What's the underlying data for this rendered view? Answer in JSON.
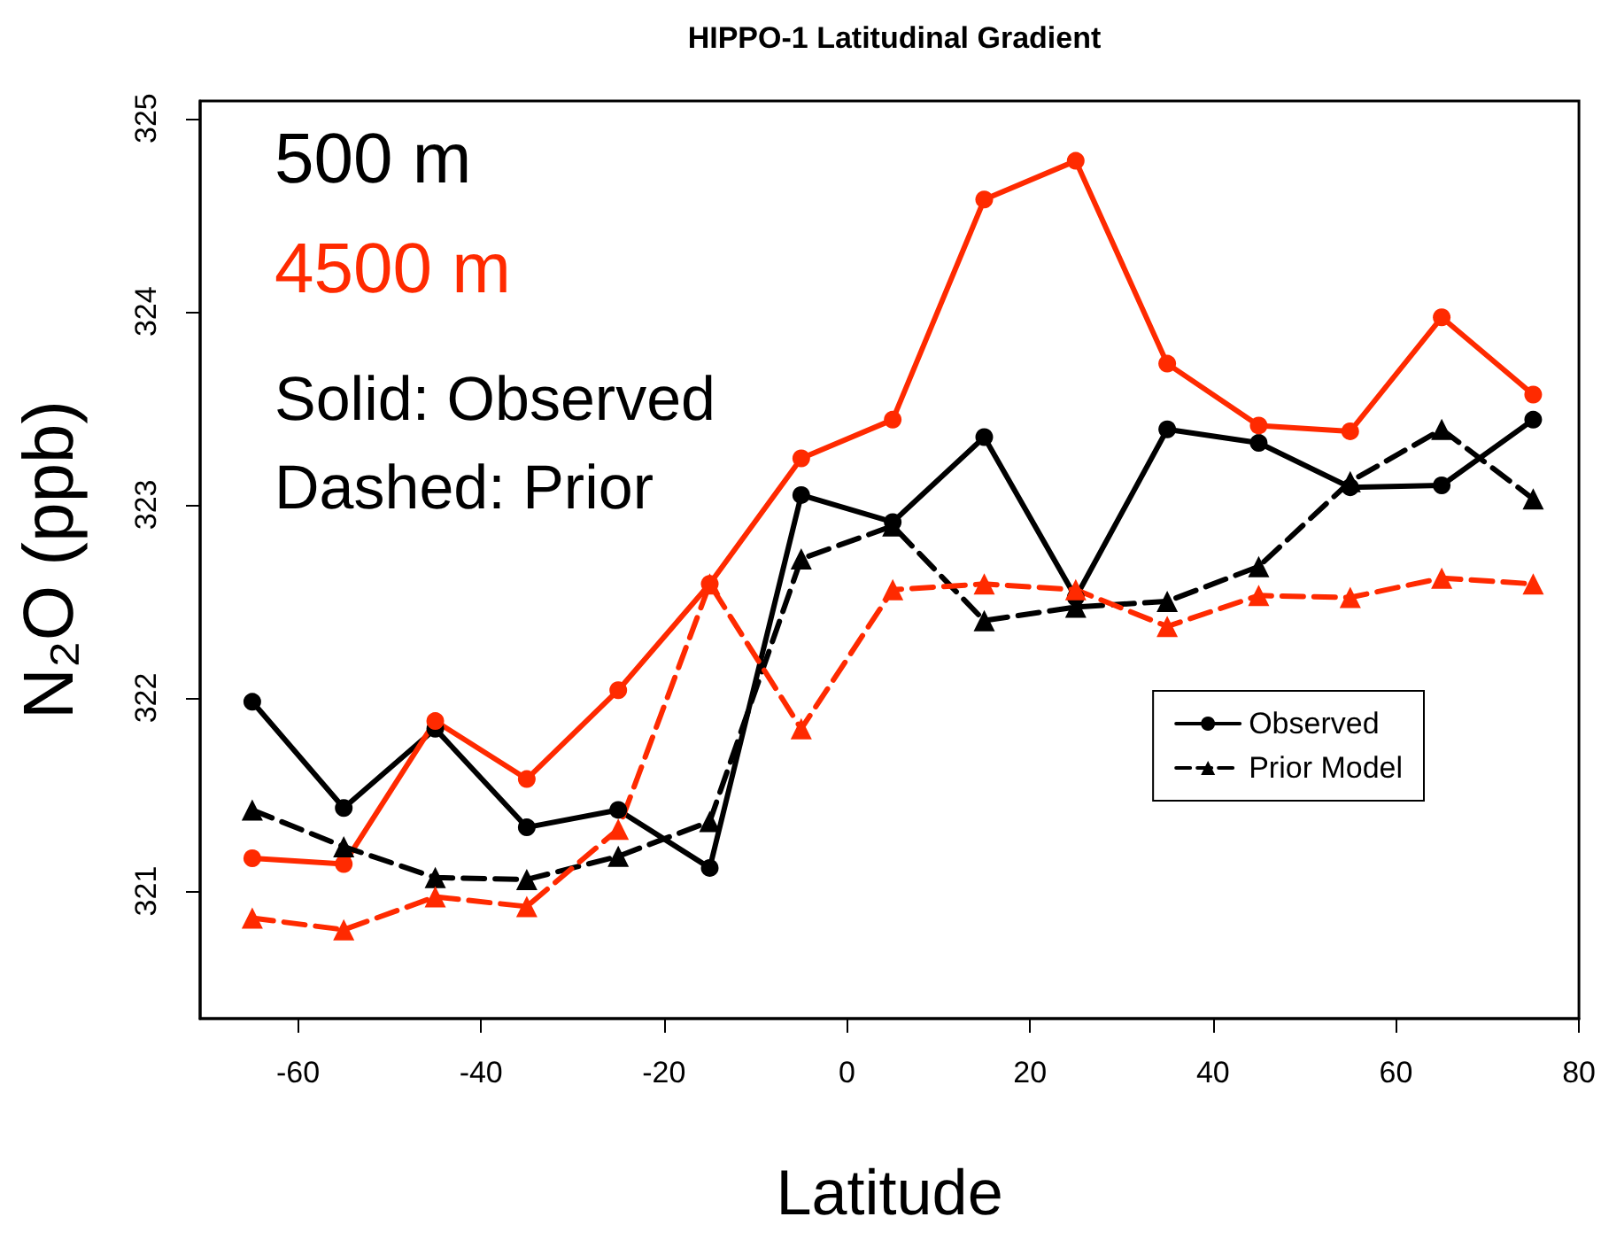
{
  "chart_data": {
    "type": "line",
    "title": "HIPPO-1 Latitudinal Gradient",
    "xlabel": "Latitude",
    "ylabel": "N₂O (ppb)",
    "annotations": [
      "500 m",
      "4500 m",
      "Solid: Observed",
      "Dashed: Prior"
    ],
    "x": [
      -65,
      -55,
      -45,
      -35,
      -25,
      -15,
      -5,
      5,
      15,
      25,
      35,
      45,
      55,
      65,
      75
    ],
    "series": [
      {
        "name": "Observed",
        "color": "#000000",
        "marker": "circle",
        "line_style": "solid",
        "values": [
          321.98,
          321.43,
          321.84,
          321.33,
          321.42,
          321.12,
          323.05,
          322.91,
          323.35,
          322.52,
          323.39,
          323.32,
          323.09,
          323.1,
          323.44
        ]
      },
      {
        "color": "#ff2a00",
        "marker": "circle",
        "line_style": "solid",
        "values": [
          321.17,
          321.14,
          321.88,
          321.58,
          322.04,
          322.59,
          323.24,
          323.44,
          324.58,
          324.78,
          323.73,
          323.41,
          323.38,
          323.97,
          323.57
        ]
      },
      {
        "name": "Prior Model",
        "color": "#000000",
        "marker": "triangle",
        "line_style": "dashed",
        "values": [
          321.42,
          321.23,
          321.07,
          321.06,
          321.18,
          321.36,
          322.72,
          322.89,
          322.4,
          322.47,
          322.5,
          322.68,
          323.12,
          323.39,
          323.03
        ]
      },
      {
        "color": "#ff2a00",
        "marker": "triangle",
        "line_style": "dashed",
        "values": [
          320.86,
          320.8,
          320.97,
          320.92,
          321.32,
          322.59,
          321.84,
          322.56,
          322.59,
          322.56,
          322.37,
          322.53,
          322.52,
          322.62,
          322.59
        ]
      }
    ],
    "xlim": [
      -70.7,
      80
    ],
    "xticks": [
      -60,
      -40,
      -20,
      0,
      20,
      40,
      60,
      80
    ],
    "ylim": [
      320.34,
      325.09
    ],
    "yticks": [
      321,
      322,
      323,
      324,
      325
    ],
    "grid": false,
    "legend": "right"
  }
}
